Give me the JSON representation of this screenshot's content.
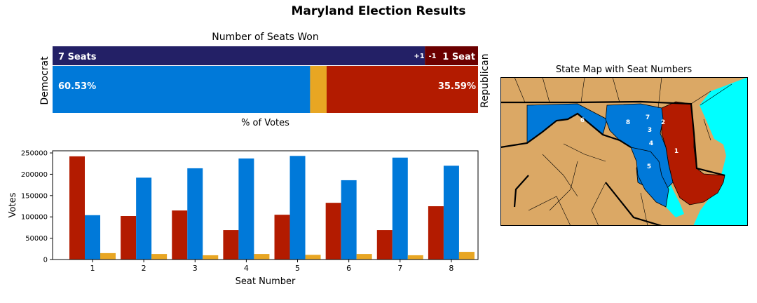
{
  "title": "Maryland Election Results",
  "colors": {
    "democrat_seats": "#232066",
    "republican_seats": "#6b0000",
    "democrat": "#0079d9",
    "republican": "#b31b00",
    "other": "#e8a623",
    "map_land": "#dba865",
    "map_water": "#00ffff"
  },
  "seats_panel": {
    "title": "Number of Seats Won",
    "xlabel": "% of Votes",
    "democrat_label": "Democrat",
    "republican_label": "Republican",
    "dem_seats_label": "7 Seats",
    "rep_seats_label": "1 Seat",
    "dem_change_label": "+1",
    "rep_change_label": "-1",
    "dem_pct_label": "60.53%",
    "rep_pct_label": "35.59%"
  },
  "map_panel": {
    "title": "State Map with Seat Numbers",
    "seat_labels": [
      "1",
      "2",
      "3",
      "4",
      "5",
      "6",
      "7",
      "8"
    ]
  },
  "chart_data": [
    {
      "type": "bar",
      "orientation": "horizontal",
      "title": "Number of Seats Won",
      "series": [
        {
          "name": "Democrat",
          "seats": 7,
          "change": "+1"
        },
        {
          "name": "Republican",
          "seats": 1,
          "change": "-1"
        }
      ],
      "total_seats": 8
    },
    {
      "type": "bar",
      "orientation": "horizontal",
      "stacked": true,
      "xlabel": "% of Votes",
      "segments": [
        {
          "name": "Democrat",
          "value": 60.53
        },
        {
          "name": "Other",
          "value": 3.88
        },
        {
          "name": "Republican",
          "value": 35.59
        }
      ]
    },
    {
      "type": "bar",
      "xlabel": "Seat Number",
      "ylabel": "Votes",
      "categories": [
        "1",
        "2",
        "3",
        "4",
        "5",
        "6",
        "7",
        "8"
      ],
      "ylim": [
        0,
        255000
      ],
      "yticks": [
        0,
        50000,
        100000,
        150000,
        200000,
        250000
      ],
      "series": [
        {
          "values": [
            242000,
            102000,
            115000,
            69000,
            105000,
            133000,
            69000,
            125000
          ]
        },
        {
          "values": [
            104000,
            192000,
            214000,
            237000,
            243000,
            186000,
            239000,
            220000
          ]
        },
        {
          "values": [
            15000,
            13000,
            10000,
            13000,
            11000,
            13000,
            10000,
            18000
          ]
        }
      ]
    }
  ]
}
